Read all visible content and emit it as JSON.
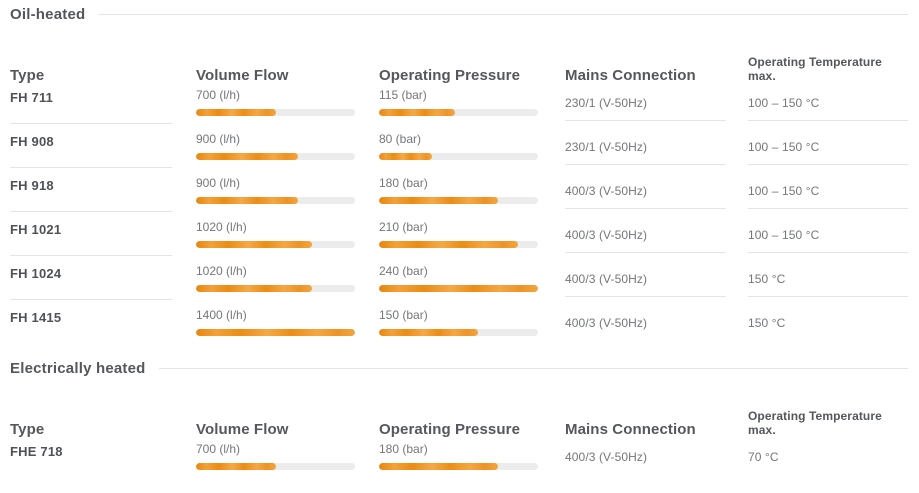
{
  "colors": {
    "heading_text": "#54575b",
    "row_label_text": "#4e5257",
    "value_text": "#73767a",
    "divider": "#e4e5e6",
    "bar_track": "#ececec",
    "bar_orange_dark": "#e8860d",
    "bar_orange_light": "#f5a946"
  },
  "columns": {
    "type": "Type",
    "volume_flow": "Volume Flow",
    "operating_pressure": "Operating Pressure",
    "mains_connection": "Mains Connection",
    "operating_temperature": "Operating Temperature max."
  },
  "scales": {
    "volume_flow_max_lh": 1400,
    "operating_pressure_max_bar": 240
  },
  "sections": [
    {
      "title": "Oil-heated",
      "rows": [
        {
          "type": "FH 711",
          "volume": "700 (l/h)",
          "volume_lh": 700,
          "pressure": "115 (bar)",
          "pressure_bar": 115,
          "mains": "230/1 (V-50Hz)",
          "temp": "100 – 150 °C"
        },
        {
          "type": "FH 908",
          "volume": "900 (l/h)",
          "volume_lh": 900,
          "pressure": "80 (bar)",
          "pressure_bar": 80,
          "mains": "230/1 (V-50Hz)",
          "temp": "100 – 150 °C"
        },
        {
          "type": "FH 918",
          "volume": "900 (l/h)",
          "volume_lh": 900,
          "pressure": "180 (bar)",
          "pressure_bar": 180,
          "mains": "400/3 (V-50Hz)",
          "temp": "100 – 150 °C"
        },
        {
          "type": "FH 1021",
          "volume": "1020 (l/h)",
          "volume_lh": 1020,
          "pressure": "210 (bar)",
          "pressure_bar": 210,
          "mains": "400/3 (V-50Hz)",
          "temp": "100 – 150 °C"
        },
        {
          "type": "FH 1024",
          "volume": "1020 (l/h)",
          "volume_lh": 1020,
          "pressure": "240 (bar)",
          "pressure_bar": 240,
          "mains": "400/3 (V-50Hz)",
          "temp": "150 °C"
        },
        {
          "type": "FH 1415",
          "volume": "1400 (l/h)",
          "volume_lh": 1400,
          "pressure": "150 (bar)",
          "pressure_bar": 150,
          "mains": "400/3 (V-50Hz)",
          "temp": "150 °C"
        }
      ]
    },
    {
      "title": "Electrically heated",
      "rows": [
        {
          "type": "FHE 718",
          "volume": "700 (l/h)",
          "volume_lh": 700,
          "pressure": "180 (bar)",
          "pressure_bar": 180,
          "mains": "400/3 (V-50Hz)",
          "temp": "70 °C"
        }
      ]
    }
  ]
}
